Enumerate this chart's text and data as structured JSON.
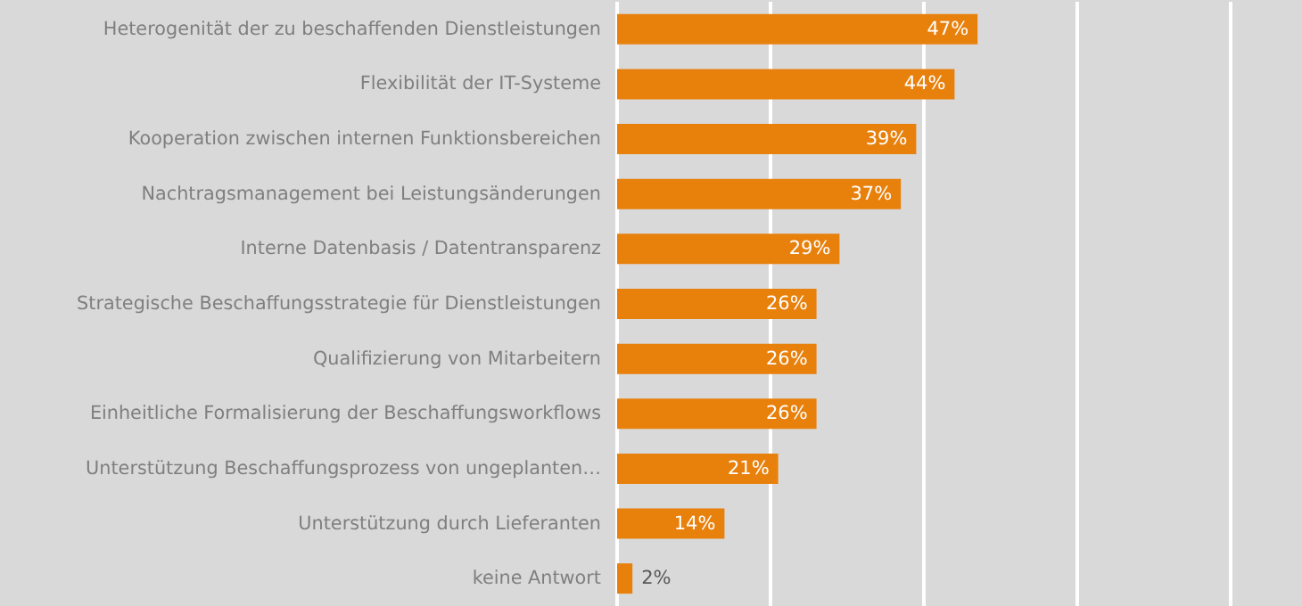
{
  "chart_data": {
    "type": "bar",
    "orientation": "horizontal",
    "categories": [
      "Heterogenität der zu beschaffenden Dienstleistungen",
      "Flexibilität der IT-Systeme",
      "Kooperation zwischen internen Funktionsbereichen",
      "Nachtragsmanagement bei Leistungsänderungen",
      "Interne Datenbasis / Datentransparenz",
      "Strategische Beschaffungsstrategie für Dienstleistungen",
      "Qualifizierung von Mitarbeitern",
      "Einheitliche Formalisierung der Beschaffungsworkflows",
      "Unterstützung Beschaffungsprozess von ungeplanten…",
      "Unterstützung durch Lieferanten",
      "keine Antwort"
    ],
    "values": [
      47,
      44,
      39,
      37,
      29,
      26,
      26,
      26,
      21,
      14,
      2
    ],
    "value_labels": [
      "47%",
      "44%",
      "39%",
      "37%",
      "29%",
      "26%",
      "26%",
      "26%",
      "21%",
      "14%",
      "2%"
    ],
    "color": "#e8800c",
    "xlim": [
      0,
      80
    ],
    "xticks": [
      {
        "value": 0,
        "label": null
      },
      {
        "value": 20,
        "label": null
      },
      {
        "value": 40,
        "label": null
      },
      {
        "value": 60,
        "label": null
      },
      {
        "value": 80,
        "label": null
      }
    ],
    "grid": "x",
    "tick_labels": "y"
  }
}
